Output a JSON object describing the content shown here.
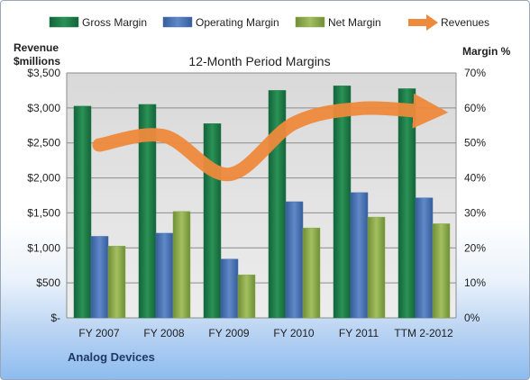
{
  "chart_data": {
    "type": "bar",
    "title": "12-Month Period Margins",
    "ylabel_left": [
      "Revenue",
      "$millions"
    ],
    "ylabel_right": "Margin %",
    "categories": [
      "FY 2007",
      "FY 2008",
      "FY 2009",
      "FY 2010",
      "FY 2011",
      "TTM 2-2012"
    ],
    "left_axis": {
      "min": 0,
      "max": 3500,
      "ticks": [
        "$-",
        "$500",
        "$1,000",
        "$1,500",
        "$2,000",
        "$2,500",
        "$3,000",
        "$3,500"
      ]
    },
    "right_axis": {
      "min": 0,
      "max": 70,
      "ticks": [
        "0%",
        "10%",
        "20%",
        "30%",
        "40%",
        "50%",
        "60%",
        "70%"
      ]
    },
    "series": [
      {
        "name": "Gross Margin",
        "kind": "bar",
        "axis": "right",
        "color": "#1e7a45",
        "values": [
          60.5,
          61.0,
          55.5,
          65.0,
          66.3,
          65.5
        ]
      },
      {
        "name": "Operating Margin",
        "kind": "bar",
        "axis": "right",
        "color": "#4a73b5",
        "values": [
          23.3,
          24.2,
          16.8,
          33.2,
          35.8,
          34.3
        ]
      },
      {
        "name": "Net Margin",
        "kind": "bar",
        "axis": "right",
        "color": "#8aaa48",
        "values": [
          20.5,
          30.4,
          12.3,
          25.7,
          28.8,
          26.9
        ]
      },
      {
        "name": "Revenues",
        "kind": "line",
        "axis": "left",
        "color": "#ee8a3c",
        "values": [
          2470,
          2600,
          2050,
          2780,
          2990,
          2950
        ]
      }
    ],
    "legend_position": "top",
    "grid": true
  },
  "company": "Analog Devices"
}
